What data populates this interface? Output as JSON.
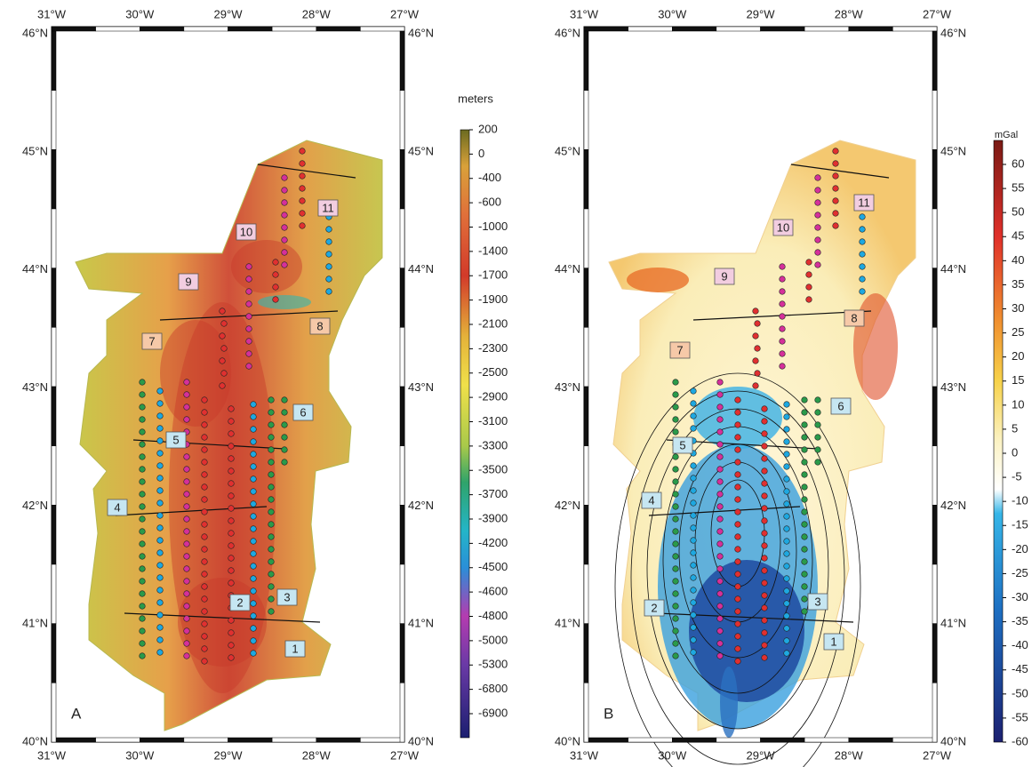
{
  "longitude_labels": [
    "31°W",
    "30°W",
    "29°W",
    "28°W",
    "27°W"
  ],
  "latitude_labels": [
    "46°N",
    "45°N",
    "44°N",
    "43°N",
    "42°N",
    "41°N",
    "40°N"
  ],
  "panels": [
    {
      "letter": "A",
      "colorbar": {
        "title": "meters",
        "ticks": [
          200,
          0,
          -400,
          -600,
          -1000,
          -1400,
          -1700,
          -1900,
          -2100,
          -2300,
          -2500,
          -2900,
          -3100,
          -3300,
          -3500,
          -3700,
          -3900,
          -4200,
          -4500,
          -4600,
          -4800,
          -5000,
          -5300,
          -6800,
          -6900
        ]
      },
      "boxes": [
        "1",
        "2",
        "3",
        "4",
        "5",
        "6",
        "7",
        "8",
        "9",
        "10",
        "11"
      ]
    },
    {
      "letter": "B",
      "colorbar": {
        "title": "mGal",
        "ticks": [
          60,
          55,
          50,
          45,
          40,
          35,
          30,
          25,
          20,
          15,
          10,
          5,
          0,
          -5,
          -10,
          -15,
          -20,
          -25,
          -30,
          -35,
          -40,
          -45,
          -50,
          -55,
          -60
        ]
      },
      "boxes": [
        "1",
        "2",
        "3",
        "4",
        "5",
        "6",
        "7",
        "8",
        "9",
        "10",
        "11"
      ]
    }
  ]
}
